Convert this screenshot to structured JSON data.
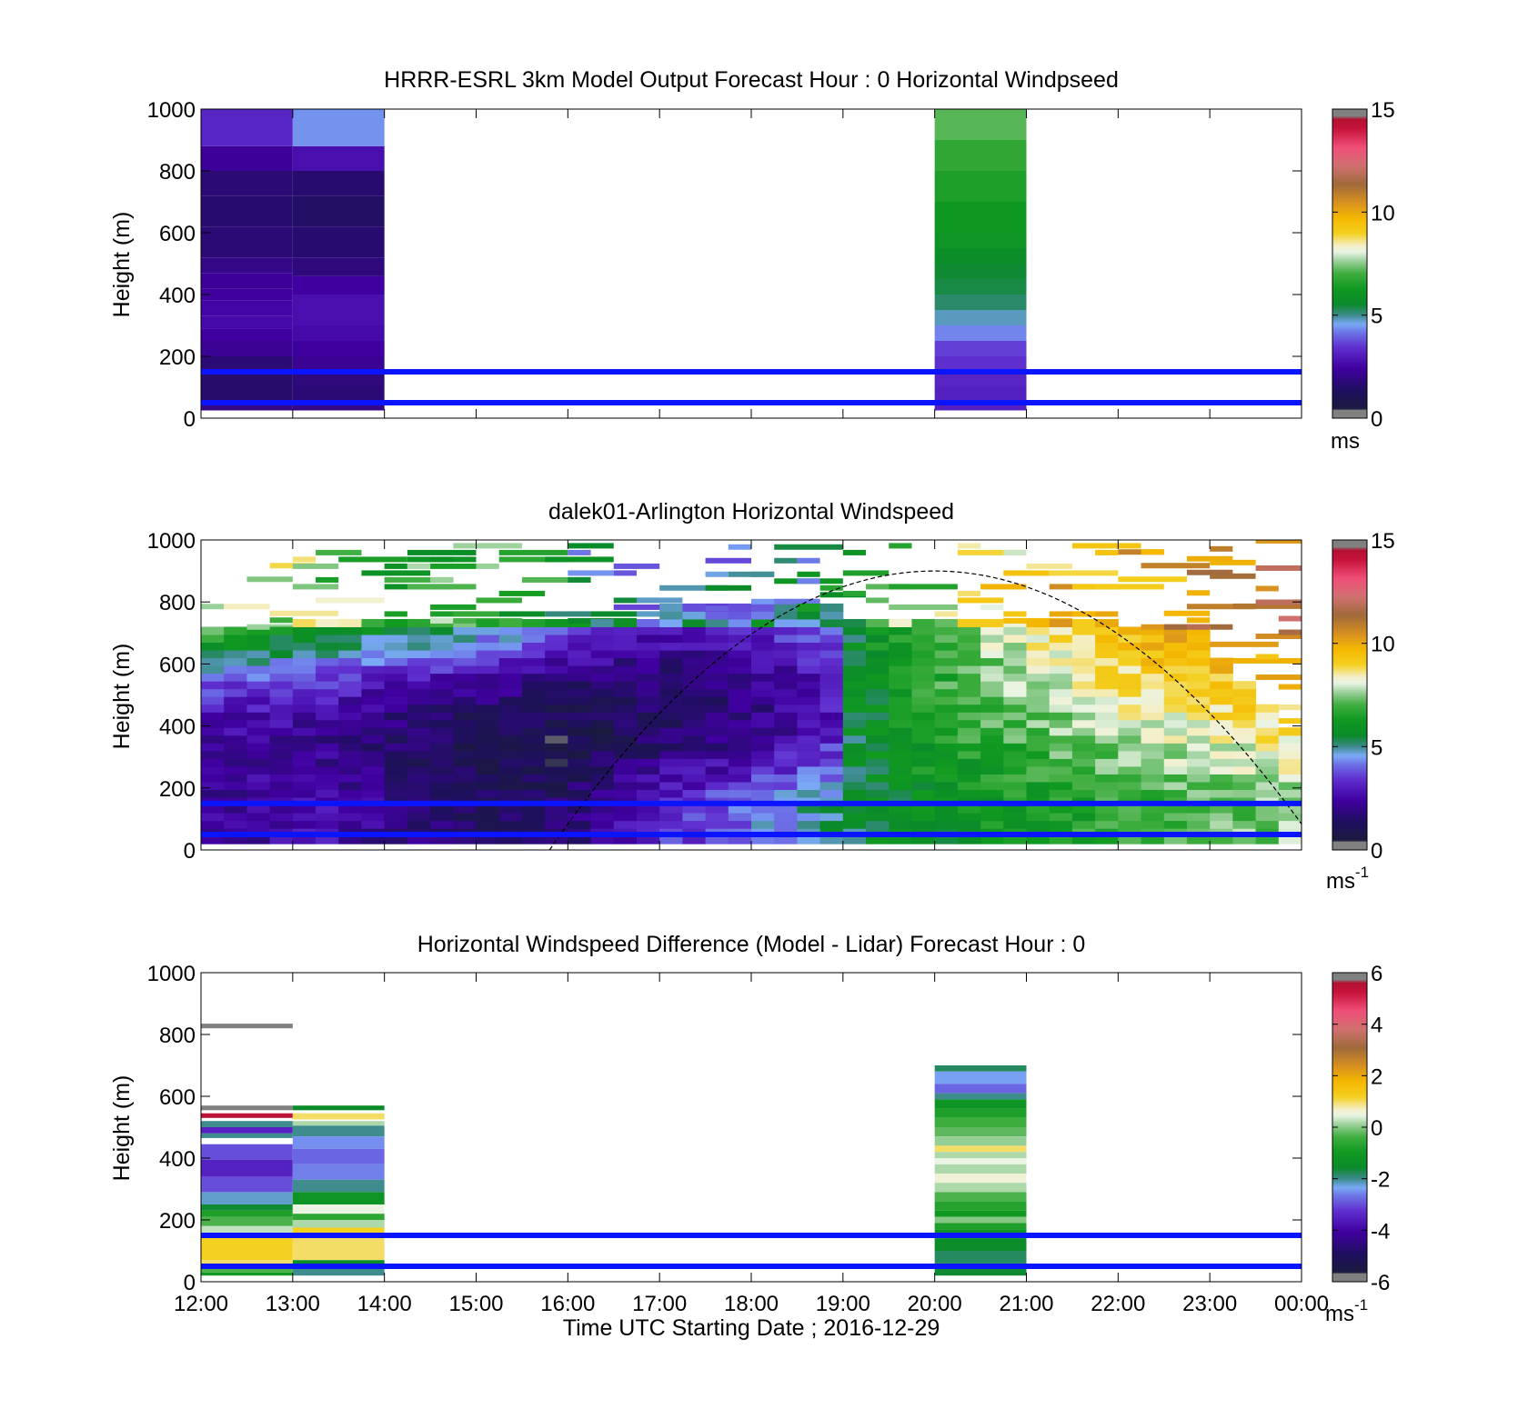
{
  "figure": {
    "xlabel": "Time UTC  Starting Date ; 2016-12-29",
    "x_ticks": [
      "12:00",
      "13:00",
      "14:00",
      "15:00",
      "16:00",
      "17:00",
      "18:00",
      "19:00",
      "20:00",
      "21:00",
      "22:00",
      "23:00",
      "00:00"
    ]
  },
  "chart_data": [
    {
      "type": "heatmap",
      "title": "HRRR-ESRL 3km Model Output   Forecast Hour : 0 Horizontal Windpseed",
      "ylabel": "Height (m)",
      "xlim": [
        12,
        24
      ],
      "ylim": [
        0,
        1000
      ],
      "y_ticks": [
        "0",
        "200",
        "400",
        "600",
        "800",
        "1000"
      ],
      "colorbar": {
        "range": [
          0,
          15
        ],
        "ticks": [
          "0",
          "5",
          "10",
          "15"
        ],
        "unit": "ms",
        "unit_sup": ""
      },
      "reference_lines_m": [
        50,
        150
      ],
      "columns": [
        {
          "t": 12,
          "values": [
            [
              25,
              50,
              2.0
            ],
            [
              50,
              100,
              1.5
            ],
            [
              100,
              150,
              1.5
            ],
            [
              150,
              200,
              1.7
            ],
            [
              200,
              250,
              2.2
            ],
            [
              250,
              290,
              2.4
            ],
            [
              290,
              330,
              2.6
            ],
            [
              330,
              380,
              2.5
            ],
            [
              380,
              420,
              2.4
            ],
            [
              420,
              470,
              2.3
            ],
            [
              470,
              520,
              2.0
            ],
            [
              520,
              620,
              1.7
            ],
            [
              620,
              720,
              1.6
            ],
            [
              720,
              800,
              1.7
            ],
            [
              800,
              880,
              2.3
            ],
            [
              880,
              1000,
              3.2
            ]
          ]
        },
        {
          "t": 13,
          "values": [
            [
              25,
              50,
              2.0
            ],
            [
              50,
              100,
              1.7
            ],
            [
              100,
              150,
              1.8
            ],
            [
              150,
              200,
              2.2
            ],
            [
              200,
              250,
              2.4
            ],
            [
              250,
              300,
              2.6
            ],
            [
              300,
              400,
              2.7
            ],
            [
              400,
              460,
              2.4
            ],
            [
              460,
              520,
              1.8
            ],
            [
              520,
              620,
              1.6
            ],
            [
              620,
              720,
              1.4
            ],
            [
              720,
              800,
              1.6
            ],
            [
              800,
              880,
              2.7
            ],
            [
              880,
              1000,
              4.4
            ]
          ]
        },
        {
          "t": 20,
          "values": [
            [
              25,
              50,
              3.1
            ],
            [
              50,
              100,
              3.1
            ],
            [
              100,
              150,
              3.2
            ],
            [
              150,
              200,
              3.4
            ],
            [
              200,
              250,
              3.6
            ],
            [
              250,
              300,
              4.3
            ],
            [
              300,
              350,
              4.8
            ],
            [
              350,
              400,
              5.2
            ],
            [
              400,
              450,
              5.4
            ],
            [
              450,
              500,
              5.5
            ],
            [
              500,
              550,
              5.7
            ],
            [
              550,
              600,
              6.0
            ],
            [
              600,
              700,
              6.2
            ],
            [
              700,
              800,
              6.5
            ],
            [
              800,
              900,
              6.8
            ],
            [
              900,
              1000,
              7.2
            ]
          ]
        }
      ]
    },
    {
      "type": "heatmap",
      "title": "dalek01-Arlington  Horizontal Windspeed",
      "ylabel": "Height (m)",
      "xlim": [
        12,
        24
      ],
      "ylim": [
        0,
        1000
      ],
      "y_ticks": [
        "0",
        "200",
        "400",
        "600",
        "800",
        "1000"
      ],
      "colorbar": {
        "range": [
          0,
          15
        ],
        "ticks": [
          "0",
          "5",
          "10",
          "15"
        ],
        "unit": "ms",
        "unit_sup": "-1"
      },
      "reference_lines_m": [
        50,
        150
      ],
      "dashed_curve": {
        "peak_x": 20,
        "peak_y": 900,
        "zero_x": [
          15.8,
          24.2
        ]
      },
      "bins_per_hour": 4,
      "low_levels": [
        [
          2.2,
          2.3,
          2.4,
          2.5,
          2.6,
          2.6,
          2.4,
          2.2,
          2.0,
          1.8,
          1.6,
          1.4,
          1.3,
          1.3,
          1.4,
          1.6,
          1.9,
          2.3,
          2.7,
          3.1,
          3.4,
          3.6,
          3.8,
          4.0,
          4.3,
          4.6,
          4.9,
          5.2,
          5.4,
          5.6,
          5.8,
          5.9,
          6.0,
          6.1,
          6.2,
          6.3,
          6.4,
          6.5,
          6.6,
          6.7,
          6.8,
          6.9,
          7.0,
          7.1,
          7.2,
          7.3,
          7.4,
          7.5
        ],
        [
          7.0,
          6.8,
          6.6,
          6.4,
          6.2,
          6.0,
          5.8,
          5.6,
          5.5,
          5.4,
          5.3,
          5.2,
          5.0,
          4.8,
          4.5,
          4.2,
          3.9,
          3.6,
          3.3,
          3.1,
          3.0,
          3.0,
          3.1,
          3.2,
          3.4,
          3.6,
          3.9,
          4.3,
          4.7,
          5.2,
          5.6,
          6.0,
          6.4,
          6.8,
          7.1,
          7.4,
          7.7,
          8.0,
          8.3,
          8.6,
          8.8,
          9.0,
          9.2,
          9.3,
          9.4,
          9.5,
          9.6,
          9.7
        ]
      ]
    },
    {
      "type": "heatmap",
      "title": "Horizontal Windspeed Difference (Model - Lidar) Forecast Hour : 0",
      "ylabel": "Height (m)",
      "xlabel": "Time UTC  Starting Date ; 2016-12-29",
      "xlim": [
        12,
        24
      ],
      "ylim": [
        0,
        1000
      ],
      "y_ticks": [
        "0",
        "200",
        "400",
        "600",
        "800",
        "1000"
      ],
      "colorbar": {
        "range": [
          -6,
          6
        ],
        "ticks": [
          "-6",
          "-4",
          "-2",
          "0",
          "2",
          "4",
          "6"
        ],
        "unit": "ms",
        "unit_sup": "-1"
      },
      "reference_lines_m": [
        50,
        150
      ],
      "columns": [
        {
          "t": 12,
          "values": [
            [
              820,
              835,
              6.0
            ],
            [
              555,
              570,
              6.0
            ],
            [
              530,
              545,
              5.5
            ],
            [
              500,
              520,
              -2.0
            ],
            [
              480,
              500,
              -3.5
            ],
            [
              465,
              480,
              -2.0
            ],
            [
              395,
              445,
              -3.0
            ],
            [
              340,
              395,
              -3.5
            ],
            [
              290,
              340,
              -3.0
            ],
            [
              250,
              290,
              -2.2
            ],
            [
              230,
              250,
              -1.6
            ],
            [
              210,
              230,
              -0.8
            ],
            [
              180,
              210,
              -0.3
            ],
            [
              150,
              180,
              0.3
            ],
            [
              70,
              150,
              1.2
            ],
            [
              50,
              70,
              1.0
            ],
            [
              30,
              50,
              -0.3
            ],
            [
              20,
              30,
              -1.0
            ]
          ]
        },
        {
          "t": 13,
          "values": [
            [
              555,
              570,
              -1.5
            ],
            [
              525,
              545,
              1.0
            ],
            [
              505,
              520,
              0.2
            ],
            [
              470,
              505,
              -2.0
            ],
            [
              430,
              470,
              -2.5
            ],
            [
              380,
              430,
              -2.8
            ],
            [
              330,
              380,
              -2.6
            ],
            [
              290,
              330,
              -2.0
            ],
            [
              250,
              290,
              -1.2
            ],
            [
              220,
              250,
              0.5
            ],
            [
              200,
              220,
              -0.6
            ],
            [
              175,
              200,
              0.2
            ],
            [
              150,
              175,
              1.2
            ],
            [
              70,
              150,
              1.0
            ],
            [
              45,
              70,
              -1.4
            ],
            [
              20,
              45,
              -2.0
            ]
          ]
        },
        {
          "t": 20,
          "values": [
            [
              680,
              700,
              -1.8
            ],
            [
              640,
              680,
              -2.4
            ],
            [
              610,
              640,
              -2.8
            ],
            [
              590,
              610,
              -2.0
            ],
            [
              560,
              590,
              -1.2
            ],
            [
              530,
              560,
              -0.8
            ],
            [
              500,
              530,
              -0.4
            ],
            [
              470,
              500,
              -0.2
            ],
            [
              440,
              470,
              0.1
            ],
            [
              420,
              440,
              1.0
            ],
            [
              400,
              420,
              0.2
            ],
            [
              380,
              400,
              0.5
            ],
            [
              350,
              380,
              0.2
            ],
            [
              320,
              350,
              0.6
            ],
            [
              290,
              320,
              0.2
            ],
            [
              260,
              290,
              -0.3
            ],
            [
              230,
              260,
              -0.7
            ],
            [
              210,
              230,
              -1.0
            ],
            [
              190,
              210,
              0.0
            ],
            [
              170,
              190,
              -0.8
            ],
            [
              140,
              170,
              -1.2
            ],
            [
              100,
              140,
              -1.5
            ],
            [
              60,
              100,
              -1.8
            ],
            [
              20,
              60,
              -1.6
            ]
          ]
        }
      ]
    }
  ]
}
